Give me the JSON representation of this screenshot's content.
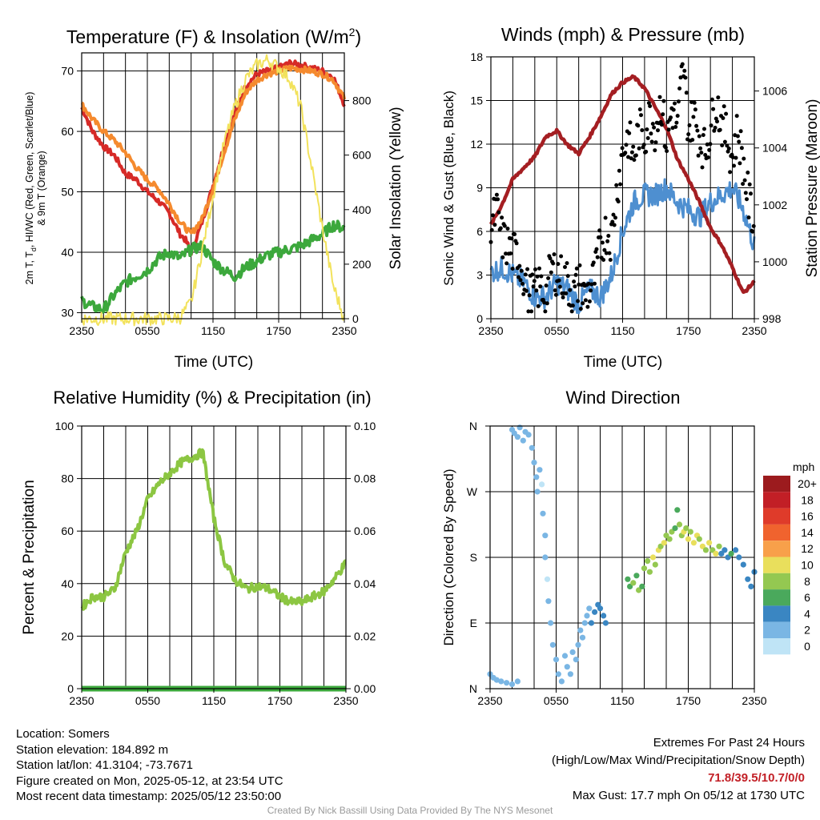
{
  "panels": {
    "temp": {
      "title": "Temperature (F) & Insolation (W/m",
      "title_sup": "2",
      "title_end": ")",
      "ylabel_lines": [
        "2m T, T",
        "d",
        ", HI/WC (Red, Green, Scarlet/Blue)",
        "& 9m T (Orange)"
      ],
      "y2label": "Solar Insolation (Yellow)",
      "xlabel": "Time (UTC)"
    },
    "wind": {
      "title": "Winds (mph) & Pressure (mb)",
      "ylabel": "Sonic Wind & Gust (Blue, Black)",
      "y2label": "Station Pressure (Maroon)",
      "xlabel": "Time (UTC)"
    },
    "rh": {
      "title": "Relative Humidity (%) & Precipitation (in)",
      "ylabel": "Percent & Precipitation"
    },
    "dir": {
      "title": "Wind Direction",
      "ylabel": "Direction (Colored By Speed)",
      "legend_title": "mph",
      "legend_labels": [
        "20+",
        "18",
        "16",
        "14",
        "12",
        "10",
        "8",
        "6",
        "4",
        "2",
        "0"
      ],
      "legend_colors": [
        "#9c1b1e",
        "#c21f26",
        "#df3b2a",
        "#f0632e",
        "#f8a04a",
        "#e9df5c",
        "#94c851",
        "#4aa95c",
        "#3a86c2",
        "#7ab6e4",
        "#bfe4f6"
      ]
    }
  },
  "info": {
    "location": "Location: Somers",
    "elevation": "Station elevation: 184.892 m",
    "latlon": "Station lat/lon: 41.3104; -73.7671",
    "created": "Figure created on Mon, 2025-05-12, at 23:54 UTC",
    "recent": "Most recent data timestamp: 2025/05/12 23:50:00"
  },
  "extremes": {
    "title": "Extremes For Past 24 Hours",
    "subtitle": "(High/Low/Max Wind/Precipitation/Snow Depth)",
    "values": "71.8/39.5/10.7/0/0",
    "gust": "Max Gust: 17.7 mph On 05/12 at 1730 UTC"
  },
  "credit": "Created By Nick Bassill Using Data Provided By The NYS Mesonet",
  "chart_data": [
    {
      "type": "line",
      "title": "Temperature (F) & Insolation (W/m2)",
      "xlabel": "Time (UTC)",
      "ylabel": "2m T, Td, HI/WC (Red, Green, Scarlet/Blue) & 9m T (Orange)",
      "y2label": "Solar Insolation (Yellow)",
      "x_ticks": [
        "2350",
        "0550",
        "1150",
        "1750",
        "2350"
      ],
      "x_hours": [
        0,
        2,
        4,
        6,
        8,
        10,
        12,
        14,
        16,
        18,
        20,
        22,
        24
      ],
      "ylim": [
        29,
        73
      ],
      "yticks": [
        30,
        40,
        50,
        60,
        70
      ],
      "y2lim": [
        0,
        975
      ],
      "y2ticks": [
        0,
        200,
        400,
        600,
        800
      ],
      "series": [
        {
          "name": "2m T",
          "color": "#d62a27",
          "axis": "left",
          "x": [
            0,
            1,
            2,
            3,
            4,
            5,
            6,
            7,
            8,
            9,
            9.5,
            10,
            11,
            12,
            13,
            14,
            15,
            16,
            17,
            18,
            19,
            20,
            21,
            22,
            23,
            24
          ],
          "y": [
            64,
            60,
            57.5,
            56,
            53,
            52,
            50,
            48.5,
            46.5,
            43,
            42,
            40,
            45,
            51,
            57.5,
            63,
            67.5,
            69.5,
            70,
            70.5,
            71.3,
            71,
            70.5,
            70,
            69,
            64.5
          ]
        },
        {
          "name": "9m T",
          "color": "#f58a2e",
          "axis": "left",
          "x": [
            0,
            1,
            2,
            3,
            4,
            5,
            6,
            7,
            8,
            9,
            9.5,
            10,
            11,
            12,
            13,
            14,
            15,
            16,
            17,
            18,
            19,
            20,
            21,
            22,
            23,
            24
          ],
          "y": [
            64.5,
            62,
            60,
            58.5,
            56.5,
            54,
            52,
            50.5,
            48,
            45,
            44,
            43,
            45.5,
            50.5,
            56.5,
            62,
            66.5,
            68.5,
            69.5,
            70,
            70.5,
            70.3,
            70,
            69.5,
            68.5,
            65.5
          ]
        },
        {
          "name": "Td",
          "color": "#3ca83c",
          "axis": "left",
          "x": [
            0,
            1,
            2,
            3,
            4,
            5,
            6,
            7,
            8,
            9,
            10,
            11,
            12,
            13,
            14,
            15,
            16,
            17,
            18,
            19,
            20,
            21,
            22,
            23,
            24
          ],
          "y": [
            32,
            31,
            30.5,
            33,
            35,
            36,
            37,
            39,
            40,
            39,
            40.5,
            41,
            38.5,
            37,
            36,
            37.5,
            38.5,
            39.5,
            40,
            40.5,
            41,
            42,
            43,
            44.5,
            44
          ]
        },
        {
          "name": "Solar",
          "color": "#f2e25c",
          "axis": "right",
          "x": [
            0,
            8,
            9,
            10,
            11,
            12,
            13,
            14,
            15,
            16,
            17,
            18,
            19,
            20,
            21,
            22,
            23,
            24
          ],
          "y": [
            0,
            0,
            5,
            60,
            250,
            450,
            640,
            780,
            880,
            930,
            950,
            920,
            880,
            780,
            560,
            330,
            120,
            0
          ]
        }
      ]
    },
    {
      "type": "line",
      "title": "Winds (mph) & Pressure (mb)",
      "xlabel": "Time (UTC)",
      "ylabel": "Sonic Wind & Gust (Blue, Black)",
      "y2label": "Station Pressure (Maroon)",
      "x_ticks": [
        "2350",
        "0550",
        "1150",
        "1750",
        "2350"
      ],
      "ylim": [
        0,
        18
      ],
      "yticks": [
        0,
        3,
        6,
        9,
        12,
        15,
        18
      ],
      "y2lim": [
        998,
        1007.2
      ],
      "y2ticks": [
        998,
        1000,
        1002,
        1004,
        1006
      ],
      "series": [
        {
          "name": "Sonic Wind",
          "color": "#4e8fd0",
          "axis": "left",
          "x": [
            0,
            1,
            2,
            3,
            4,
            5,
            6,
            7,
            8,
            9,
            10,
            11,
            12,
            13,
            14,
            15,
            16,
            17,
            18,
            19,
            20,
            21,
            22,
            23,
            24
          ],
          "y": [
            3.2,
            3.5,
            3,
            2.5,
            1.5,
            1.5,
            2.5,
            2,
            1,
            2,
            1.5,
            3,
            6,
            8,
            8.5,
            8.5,
            9,
            8,
            7.5,
            7,
            8,
            8.5,
            9,
            7.5,
            5
          ]
        },
        {
          "name": "Gust",
          "color": "#000000",
          "axis": "left",
          "x": [
            0,
            0.5,
            1,
            1.5,
            2,
            2.5,
            3,
            3.5,
            4,
            4.5,
            5,
            5.5,
            6,
            6.5,
            7,
            7.5,
            8,
            8.5,
            9,
            9.5,
            10,
            10.5,
            11,
            11.5,
            12,
            12.5,
            13,
            13.5,
            14,
            14.5,
            15,
            15.5,
            16,
            16.5,
            17,
            17.5,
            18,
            18.5,
            19,
            19.5,
            20,
            20.5,
            21,
            21.5,
            22,
            22.5,
            23,
            23.5,
            24
          ],
          "y": [
            6,
            7.5,
            5.5,
            5,
            4.5,
            4.2,
            3,
            1.5,
            1.8,
            2.2,
            1.5,
            3.5,
            3.2,
            2.8,
            2.5,
            1.5,
            2.5,
            1.5,
            2,
            3,
            5,
            6,
            5.5,
            9,
            11.5,
            12.5,
            11,
            13,
            12.5,
            14,
            13,
            15,
            12,
            14.5,
            13,
            17.7,
            13,
            14,
            12.5,
            11.5,
            13,
            15,
            13.5,
            12.5,
            11,
            13,
            10.5,
            8,
            6.5
          ]
        },
        {
          "name": "Station Pressure",
          "color": "#a41e22",
          "axis": "right",
          "x": [
            0,
            1,
            2,
            3,
            4,
            5,
            6,
            7,
            8,
            9,
            10,
            11,
            12,
            13,
            14,
            15,
            16,
            17,
            18,
            19,
            20,
            21,
            22,
            23,
            24
          ],
          "y": [
            1001.3,
            1002,
            1002.9,
            1003.3,
            1003.7,
            1004.4,
            1004.6,
            1004.1,
            1003.8,
            1004.4,
            1005.1,
            1005.9,
            1006.3,
            1006.5,
            1006.1,
            1005.4,
            1004.7,
            1003.6,
            1002.9,
            1002.1,
            1001.2,
            1000.6,
            999.8,
            998.9,
            999.3
          ]
        }
      ]
    },
    {
      "type": "line",
      "title": "Relative Humidity (%) & Precipitation (in)",
      "ylabel": "Percent & Precipitation",
      "x_ticks": [
        "2350",
        "0550",
        "1150",
        "1750",
        "2350"
      ],
      "ylim": [
        0,
        100
      ],
      "yticks": [
        0,
        20,
        40,
        60,
        80,
        100
      ],
      "y2lim": [
        0,
        0.1
      ],
      "y2ticks": [
        0.0,
        0.02,
        0.04,
        0.06,
        0.08,
        0.1
      ],
      "series": [
        {
          "name": "RH",
          "color": "#8cc642",
          "axis": "left",
          "x": [
            0,
            1,
            2,
            3,
            4,
            5,
            6,
            7,
            8,
            9,
            10,
            11,
            12,
            13,
            14,
            15,
            16,
            17,
            18,
            19,
            20,
            21,
            22,
            23,
            24
          ],
          "y": [
            31,
            35,
            35,
            38,
            52,
            60,
            72,
            78,
            82,
            86,
            88,
            90,
            65,
            48,
            41,
            38,
            39,
            38,
            35,
            33,
            33,
            35,
            37,
            42,
            48
          ]
        },
        {
          "name": "Precip",
          "color": "#3ca83c",
          "axis": "right",
          "x": [
            0,
            24
          ],
          "y": [
            0,
            0
          ]
        }
      ]
    },
    {
      "type": "scatter",
      "title": "Wind Direction",
      "ylabel": "Direction (Colored By Speed)",
      "x_ticks": [
        "2350",
        "0550",
        "1150",
        "1750",
        "2350"
      ],
      "ylim": [
        0,
        360
      ],
      "y_ticks": [
        "N",
        "E",
        "S",
        "W",
        "N"
      ],
      "legend_title": "mph",
      "points": [
        [
          0,
          20,
          1
        ],
        [
          0.3,
          15,
          2
        ],
        [
          0.6,
          12,
          2
        ],
        [
          1,
          10,
          1
        ],
        [
          1.5,
          8,
          2
        ],
        [
          2,
          6,
          2
        ],
        [
          2.5,
          10,
          1
        ],
        [
          2,
          355,
          1
        ],
        [
          2.2,
          350,
          2
        ],
        [
          2.5,
          345,
          2
        ],
        [
          2.7,
          358,
          1
        ],
        [
          3,
          340,
          1
        ],
        [
          3.2,
          352,
          2
        ],
        [
          3.5,
          348,
          1
        ],
        [
          3.8,
          330,
          1
        ],
        [
          4,
          310,
          1
        ],
        [
          4.2,
          290,
          1
        ],
        [
          4.3,
          270,
          1
        ],
        [
          4.5,
          300,
          1
        ],
        [
          4.7,
          280,
          0
        ],
        [
          4.8,
          240,
          1
        ],
        [
          5,
          210,
          1
        ],
        [
          5,
          180,
          1
        ],
        [
          5.2,
          150,
          0
        ],
        [
          5.3,
          120,
          1
        ],
        [
          5.5,
          90,
          1
        ],
        [
          5.7,
          60,
          2
        ],
        [
          6,
          40,
          2
        ],
        [
          6.2,
          20,
          1
        ],
        [
          6.5,
          10,
          2
        ],
        [
          6.8,
          45,
          2
        ],
        [
          7,
          30,
          1
        ],
        [
          7.3,
          20,
          1
        ],
        [
          7.5,
          50,
          2
        ],
        [
          7.8,
          40,
          1
        ],
        [
          8,
          60,
          2
        ],
        [
          8.2,
          80,
          1
        ],
        [
          8.4,
          70,
          2
        ],
        [
          8.6,
          90,
          2
        ],
        [
          8.8,
          100,
          2
        ],
        [
          9,
          110,
          1
        ],
        [
          9.2,
          90,
          4
        ],
        [
          9.5,
          105,
          4
        ],
        [
          9.8,
          115,
          3
        ],
        [
          10,
          110,
          4
        ],
        [
          10.3,
          100,
          4
        ],
        [
          10.5,
          90,
          4
        ],
        [
          12.5,
          150,
          5
        ],
        [
          12.7,
          140,
          6
        ],
        [
          13,
          145,
          7
        ],
        [
          13.3,
          155,
          6
        ],
        [
          13.5,
          135,
          7
        ],
        [
          13.8,
          140,
          6
        ],
        [
          14,
          165,
          7
        ],
        [
          14.3,
          175,
          8
        ],
        [
          14.5,
          160,
          7
        ],
        [
          14.8,
          180,
          10
        ],
        [
          15,
          170,
          8
        ],
        [
          15.3,
          190,
          9
        ],
        [
          15.5,
          195,
          8
        ],
        [
          15.8,
          200,
          9
        ],
        [
          16,
          210,
          8
        ],
        [
          16.3,
          205,
          7
        ],
        [
          16.5,
          215,
          8
        ],
        [
          16.8,
          220,
          6
        ],
        [
          17,
          245,
          6
        ],
        [
          17.2,
          225,
          8
        ],
        [
          17.4,
          210,
          8
        ],
        [
          17.6,
          215,
          10
        ],
        [
          17.8,
          220,
          7
        ],
        [
          18,
          205,
          9
        ],
        [
          18.2,
          215,
          8
        ],
        [
          18.5,
          200,
          10
        ],
        [
          18.8,
          210,
          9
        ],
        [
          19,
          205,
          8
        ],
        [
          19.3,
          195,
          10
        ],
        [
          19.6,
          190,
          8
        ],
        [
          19.9,
          200,
          9
        ],
        [
          20.2,
          190,
          8
        ],
        [
          20.5,
          185,
          10
        ],
        [
          20.8,
          195,
          8
        ],
        [
          21,
          185,
          4
        ],
        [
          21.3,
          190,
          4
        ],
        [
          21.6,
          180,
          4
        ],
        [
          21.9,
          185,
          5
        ],
        [
          22.3,
          190,
          4
        ],
        [
          22.6,
          180,
          4
        ],
        [
          23,
          170,
          4
        ],
        [
          23.4,
          150,
          4
        ],
        [
          23.7,
          140,
          4
        ],
        [
          24,
          160,
          4
        ]
      ]
    }
  ]
}
